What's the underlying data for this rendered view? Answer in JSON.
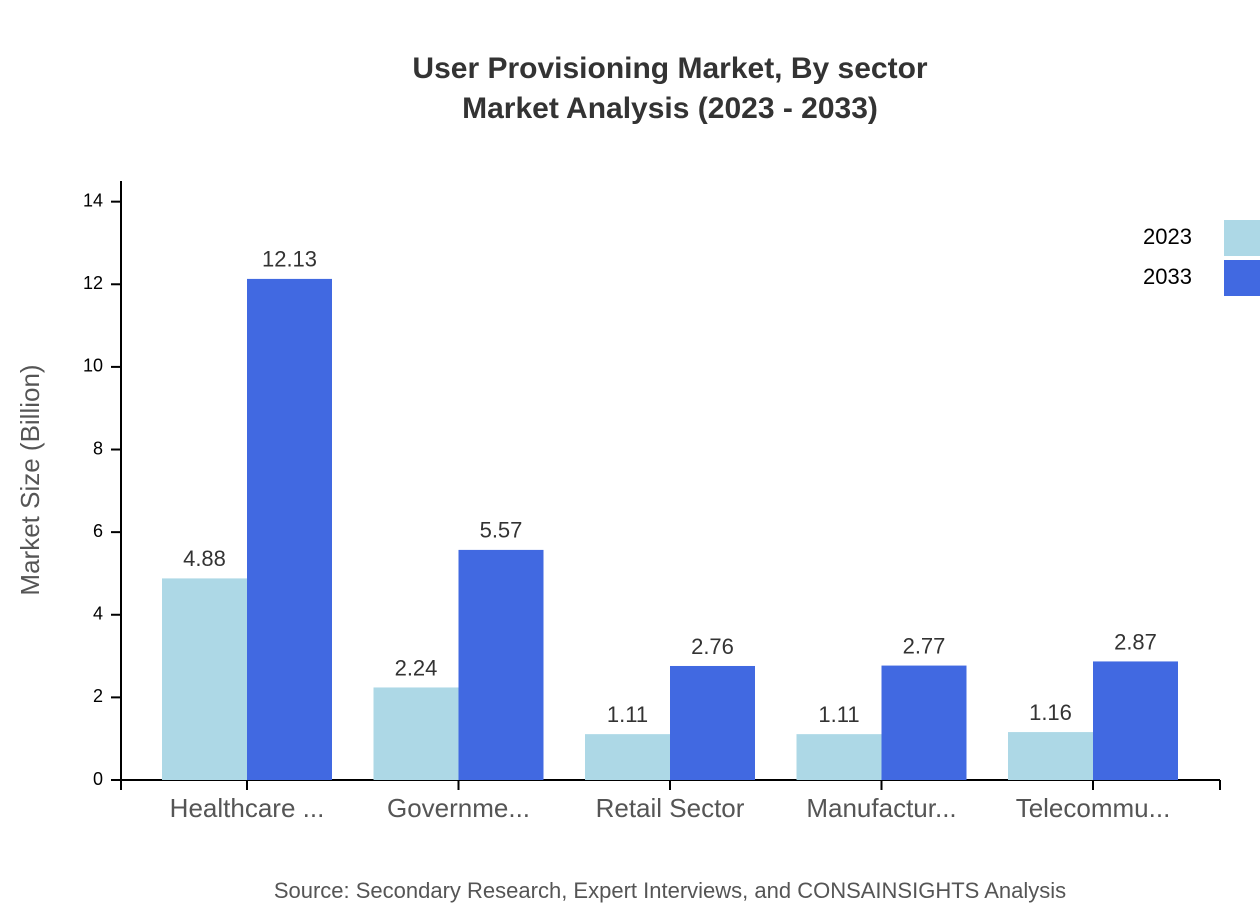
{
  "chart_data": {
    "type": "bar",
    "title": "User Provisioning Market, By sector",
    "subtitle": "Market Analysis (2023 - 2033)",
    "y_label": "Market Size (Billion)",
    "source": "Source: Secondary Research, Expert Interviews, and CONSAINSIGHTS Analysis",
    "categories": [
      "Healthcare ...",
      "Governme...",
      "Retail Sector",
      "Manufactur...",
      "Telecommu..."
    ],
    "series": [
      {
        "name": "2023",
        "color": "#add8e6",
        "values": [
          4.88,
          2.24,
          1.11,
          1.11,
          1.16
        ]
      },
      {
        "name": "2033",
        "color": "#4169e1",
        "values": [
          12.13,
          5.57,
          2.76,
          2.77,
          2.87
        ]
      }
    ],
    "ylim": [
      0,
      14.5
    ],
    "yticks": [
      0,
      2,
      4,
      6,
      8,
      10,
      12,
      14
    ],
    "legend": "top-right"
  }
}
